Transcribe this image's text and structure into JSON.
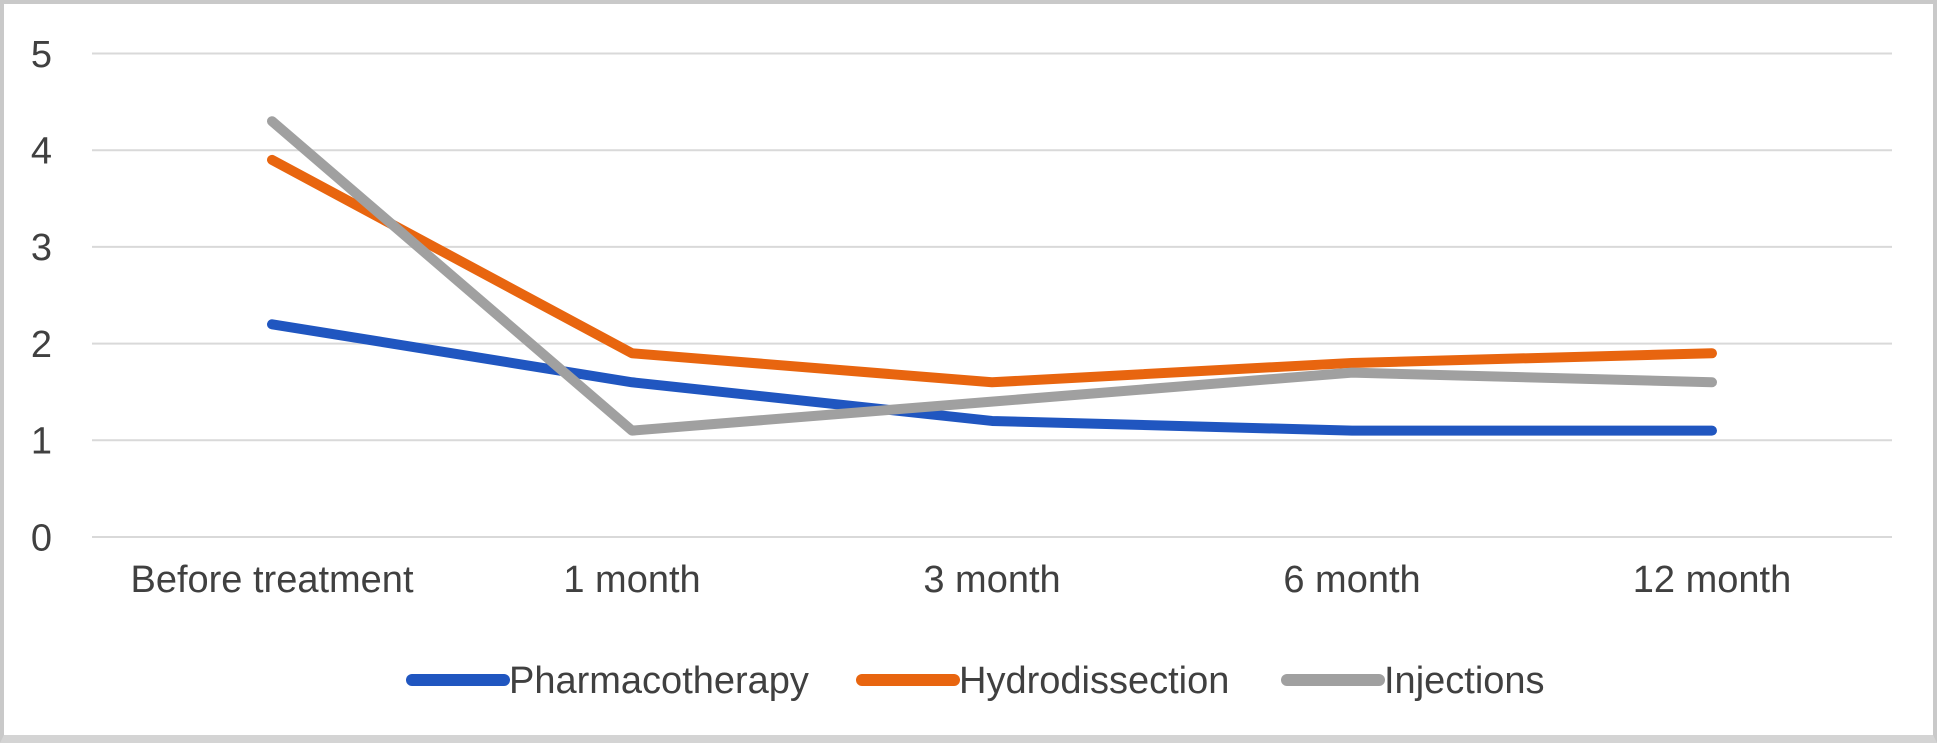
{
  "chart_data": {
    "type": "line",
    "title": "",
    "xlabel": "",
    "ylabel": "",
    "categories": [
      "Before treatment",
      "1 month",
      "3 month",
      "6 month",
      "12 month"
    ],
    "series": [
      {
        "name": "Pharmacotherapy",
        "color": "#2056C0",
        "values": [
          2.2,
          1.6,
          1.2,
          1.1,
          1.1
        ]
      },
      {
        "name": "Hydrodissection",
        "color": "#E8650F",
        "values": [
          3.9,
          1.9,
          1.6,
          1.8,
          1.9
        ]
      },
      {
        "name": "Injections",
        "color": "#A0A0A0",
        "values": [
          4.3,
          1.1,
          1.4,
          1.7,
          1.6
        ]
      }
    ],
    "ylim": [
      0,
      5
    ],
    "ytick_interval": 1,
    "ytick_labels": [
      "0",
      "1",
      "2",
      "3",
      "4",
      "5"
    ],
    "grid": true,
    "gridline_color": "#D9D9D9",
    "text_color": "#404040",
    "legend_position": "bottom"
  }
}
